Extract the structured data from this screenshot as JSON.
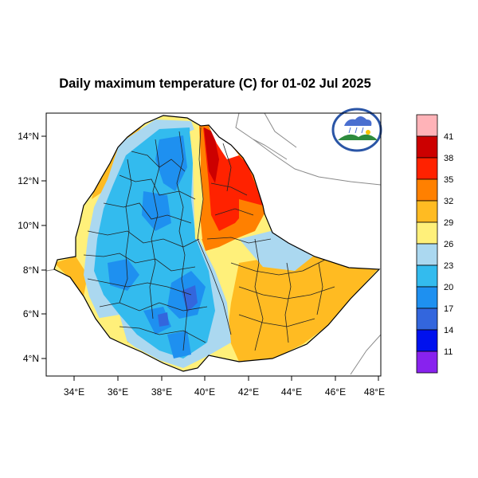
{
  "title": "Daily maximum temperature (C) for 01-02 Jul 2025",
  "x_ticks": [
    "34°E",
    "36°E",
    "38°E",
    "40°E",
    "42°E",
    "44°E",
    "46°E",
    "48°E"
  ],
  "y_ticks": [
    "14°N",
    "12°N",
    "10°N",
    "8°N",
    "6°N",
    "4°N"
  ],
  "colorbar": {
    "labels": [
      "41",
      "38",
      "35",
      "32",
      "29",
      "26",
      "23",
      "20",
      "17",
      "14",
      "11"
    ],
    "colors": [
      "#ffb3b8",
      "#cc0000",
      "#ff2200",
      "#ff8000",
      "#ffbb22",
      "#fff07a",
      "#abd8f0",
      "#33bbee",
      "#1e90f0",
      "#3366dd",
      "#0011ee",
      "#8822ee"
    ]
  },
  "logo": {
    "name": "ethiopian-meteorology-institute-logo",
    "colors": {
      "ring": "#2a55a6",
      "cloud": "#4a6fd0",
      "hill": "#2e8b3e",
      "sun": "#f5c400"
    }
  }
}
